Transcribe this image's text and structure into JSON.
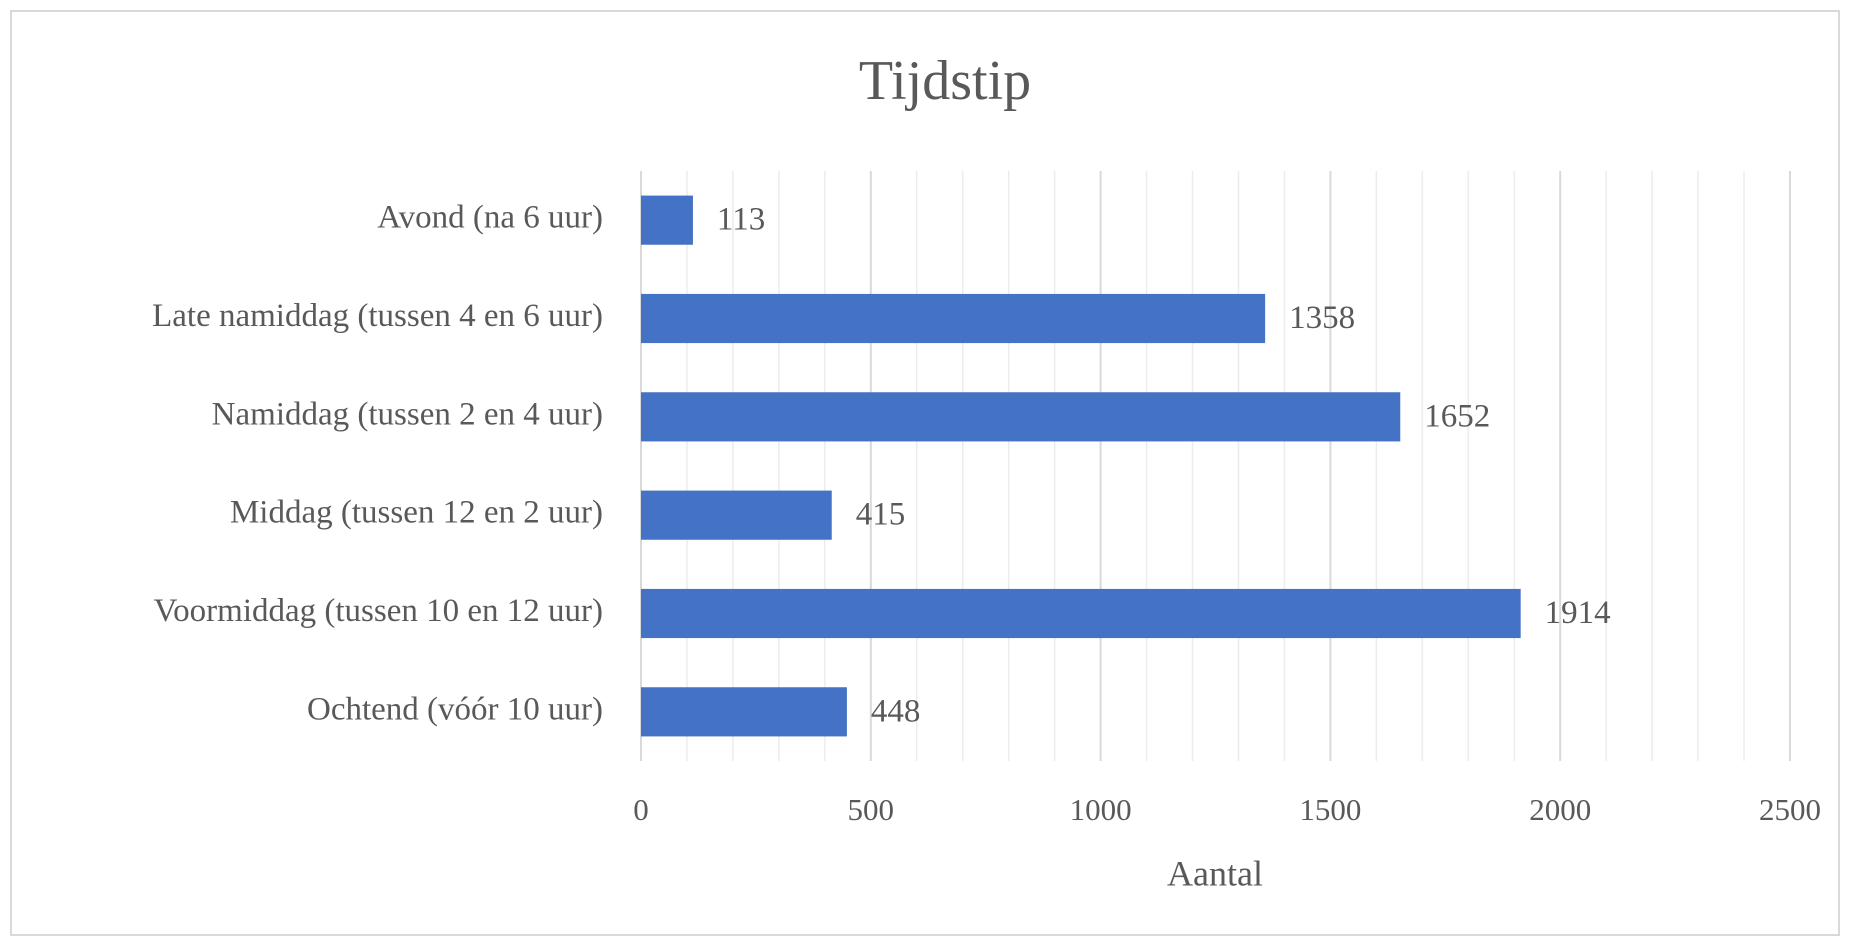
{
  "chart_data": {
    "type": "bar",
    "orientation": "horizontal",
    "title": "Tijdstip",
    "x_label": "Aantal",
    "categories": [
      "Avond (na 6 uur)",
      "Late namiddag (tussen 4 en 6 uur)",
      "Namiddag (tussen 2 en 4 uur)",
      "Middag (tussen 12 en 2 uur)",
      "Voormiddag (tussen 10 en 12 uur)",
      "Ochtend (vóór 10 uur)"
    ],
    "values": [
      113,
      1358,
      1652,
      415,
      1914,
      448
    ],
    "color": "#4472c4",
    "xlim": [
      0,
      2500
    ],
    "xticks": [
      0,
      500,
      1000,
      1500,
      2000,
      2500
    ],
    "minor_xticks": [
      100,
      200,
      300,
      400,
      600,
      700,
      800,
      900,
      1100,
      1200,
      1300,
      1400,
      1600,
      1700,
      1800,
      1900,
      2100,
      2200,
      2300,
      2400
    ],
    "grid": true
  }
}
